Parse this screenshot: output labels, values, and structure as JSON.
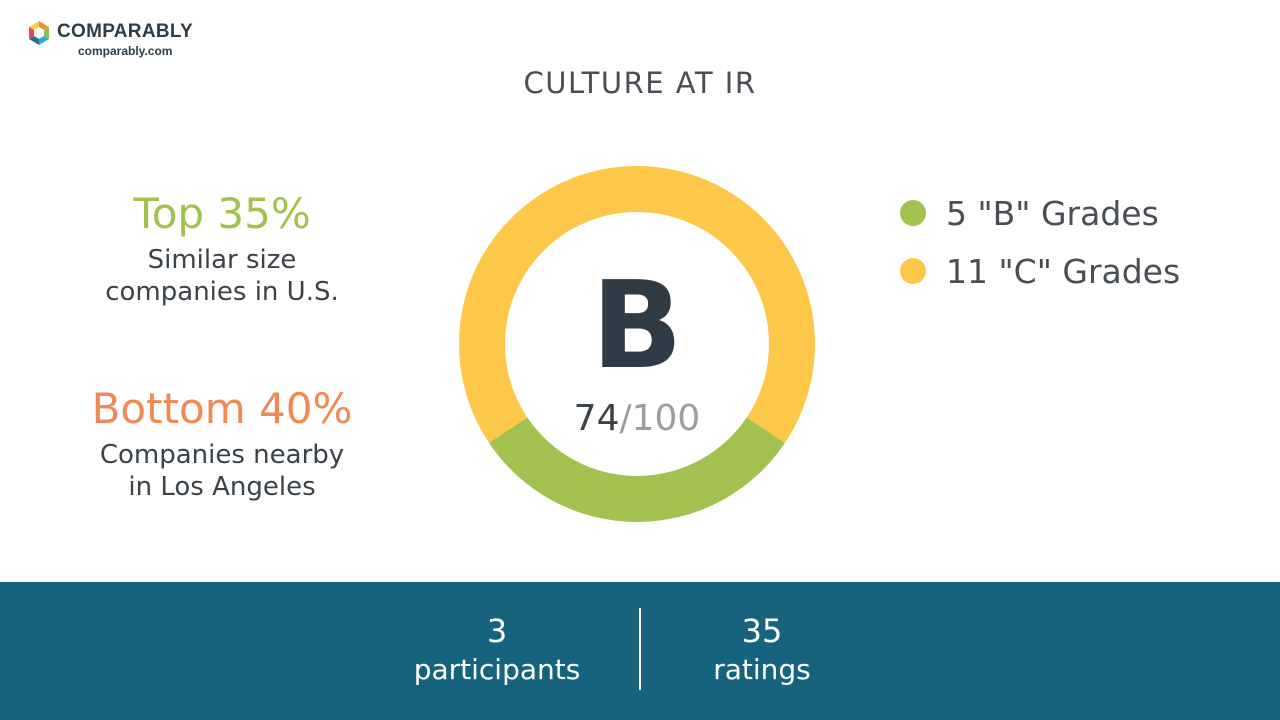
{
  "brand": {
    "name": "COMPARABLY",
    "domain": "comparably.com"
  },
  "title": "CULTURE AT IR",
  "stats": {
    "top": {
      "headline": "Top 35%",
      "line1": "Similar size",
      "line2": "companies in U.S.",
      "color": "#a3c14f"
    },
    "bottom": {
      "headline": "Bottom 40%",
      "line1": "Companies nearby",
      "line2": "in Los Angeles",
      "color": "#ef8a56"
    }
  },
  "grade": {
    "letter": "B",
    "score": "74",
    "out_of": "/100"
  },
  "chart_data": {
    "type": "pie",
    "variant": "donut",
    "categories": [
      "5 \"B\" Grades",
      "11 \"C\" Grades"
    ],
    "values": [
      5,
      11
    ],
    "colors": [
      "#a3c14f",
      "#fdc84a"
    ],
    "legend_position": "right"
  },
  "footer": {
    "participants_count": "3",
    "participants_label": "participants",
    "ratings_count": "35",
    "ratings_label": "ratings",
    "background": "#16637e"
  }
}
